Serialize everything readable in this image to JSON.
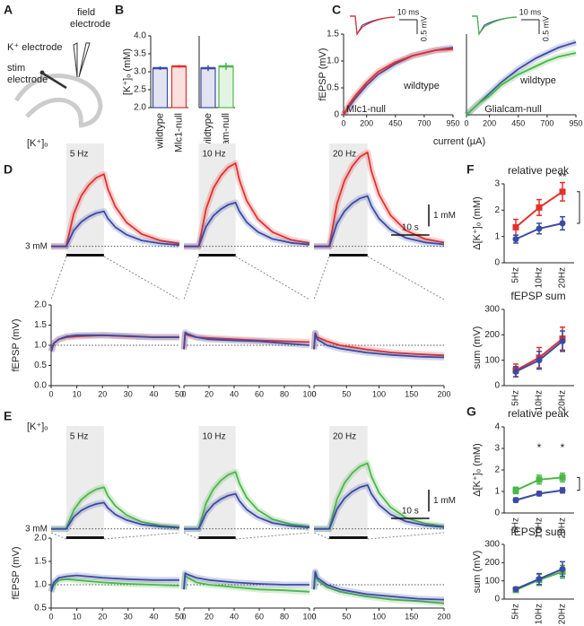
{
  "panel_labels": [
    "A",
    "B",
    "C",
    "D",
    "E",
    "F",
    "G"
  ],
  "schematic": {
    "k_electrode": "K⁺ electrode",
    "field_electrode": [
      "field",
      "electrode"
    ],
    "stim_electrode": [
      "stim",
      "electrode"
    ]
  },
  "chart_data": [
    {
      "type": "bar",
      "ylabel": "[K⁺]ₒ (mM)",
      "categories": [
        "wildtype",
        "Mlc1-null"
      ],
      "values": [
        3.1,
        3.15
      ],
      "errors": [
        0.05,
        0.04
      ],
      "colors": [
        "#3b4ba3",
        "#e3312d"
      ],
      "ylim": [
        2,
        4
      ],
      "yticks": [
        {
          "value": 2,
          "label": "2.0"
        },
        2.5,
        {
          "value": 3,
          "label": "3.0"
        },
        3.5,
        {
          "value": 4,
          "label": "4.0"
        }
      ]
    },
    {
      "type": "bar",
      "categories": [
        "wildtype",
        "Glialcam-null"
      ],
      "values": [
        3.1,
        3.15
      ],
      "errors": [
        0.08,
        0.1
      ],
      "colors": [
        "#3b4ba3",
        "#4cb748"
      ],
      "ylim": [
        2,
        4
      ]
    },
    {
      "type": "line",
      "ylabel": "fEPSP (mV)",
      "xlabel": "current (µA)",
      "inset_scale_x": "10 ms",
      "inset_scale_y": "0.5 mV",
      "x": [
        0,
        50,
        100,
        200,
        300,
        450,
        600,
        700,
        800,
        950
      ],
      "xlim": [
        0,
        950
      ],
      "xticks": [
        0,
        200,
        450,
        700,
        950
      ],
      "ylim": [
        0,
        1.5
      ],
      "yticks": [
        0,
        0.5,
        {
          "value": 1,
          "label": "1.0"
        },
        1.5
      ],
      "series": [
        {
          "name": "wildtype",
          "color": "#3b4ba3",
          "values": [
            0,
            0.15,
            0.3,
            0.55,
            0.75,
            0.95,
            1.1,
            1.15,
            1.2,
            1.25
          ]
        },
        {
          "name": "Mlc1-null",
          "color": "#e3312d",
          "values": [
            0,
            0.2,
            0.35,
            0.6,
            0.8,
            0.98,
            1.1,
            1.15,
            1.2,
            1.22
          ]
        }
      ]
    },
    {
      "type": "line",
      "inset_scale_x": "10 ms",
      "inset_scale_y": "0.5 mV",
      "x": [
        0,
        50,
        100,
        200,
        300,
        450,
        600,
        700,
        800,
        950
      ],
      "xlim": [
        0,
        950
      ],
      "xticks": [
        0,
        200,
        450,
        700,
        950
      ],
      "ylim": [
        0,
        1.5
      ],
      "series": [
        {
          "name": "wildtype",
          "color": "#3b4ba3",
          "values": [
            0,
            0.1,
            0.2,
            0.4,
            0.6,
            0.85,
            1.05,
            1.15,
            1.25,
            1.35
          ]
        },
        {
          "name": "Glialcam-null",
          "color": "#4cb748",
          "values": [
            0,
            0.1,
            0.2,
            0.35,
            0.55,
            0.75,
            0.9,
            1.0,
            1.08,
            1.15
          ]
        }
      ]
    },
    {
      "type": "trace",
      "label": "[K⁺]ₒ",
      "title": "5 Hz",
      "baseline": {
        "value": 3,
        "label": "3 mM"
      },
      "stim": [
        0,
        10
      ],
      "x": [
        -4,
        0,
        2,
        4,
        6,
        8,
        10,
        11,
        13,
        16,
        20,
        25,
        30
      ],
      "xlim": [
        -4,
        30
      ],
      "ylim": [
        2.7,
        7.7
      ],
      "series": [
        {
          "color": "#e3312d",
          "values": [
            3,
            3,
            4.49,
            5.31,
            5.81,
            6.14,
            6.3,
            5.64,
            4.82,
            4.09,
            3.56,
            3.26,
            3.13
          ]
        },
        {
          "color": "#3b4ba3",
          "values": [
            3,
            3,
            3.72,
            4.12,
            4.36,
            4.52,
            4.6,
            4.28,
            3.88,
            3.53,
            3.27,
            3.13,
            3.06
          ]
        }
      ]
    },
    {
      "type": "trace",
      "title": "10 Hz",
      "baseline": 3,
      "stim": [
        0,
        10
      ],
      "x": [
        -4,
        0,
        2,
        4,
        6,
        8,
        10,
        11,
        13,
        16,
        20,
        25,
        30
      ],
      "xlim": [
        -4,
        30
      ],
      "ylim": [
        2.7,
        7.7
      ],
      "series": [
        {
          "color": "#e3312d",
          "values": [
            3,
            3,
            4.71,
            5.66,
            6.23,
            6.61,
            6.8,
            6.04,
            5.09,
            4.25,
            3.65,
            3.3,
            3.15
          ]
        },
        {
          "color": "#3b4ba3",
          "values": [
            3,
            3,
            3.9,
            4.4,
            4.7,
            4.9,
            5.0,
            4.6,
            4.1,
            3.66,
            3.34,
            3.16,
            3.08
          ]
        }
      ]
    },
    {
      "type": "trace",
      "title": "20 Hz",
      "baseline": 3,
      "stim": [
        0,
        10
      ],
      "scale_y": {
        "value": 1,
        "label": "1 mM"
      },
      "scale_x": {
        "value": 10,
        "label": "10 s"
      },
      "x": [
        -4,
        0,
        2,
        4,
        6,
        8,
        10,
        11,
        13,
        16,
        20,
        25,
        30
      ],
      "xlim": [
        -4,
        30
      ],
      "ylim": [
        2.7,
        7.7
      ],
      "series": [
        {
          "color": "#e3312d",
          "values": [
            3,
            3,
            4.94,
            6.01,
            6.66,
            7.09,
            7.3,
            6.44,
            5.37,
            4.42,
            3.73,
            3.34,
            3.17
          ]
        },
        {
          "color": "#3b4ba3",
          "values": [
            3,
            3,
            4.04,
            4.61,
            4.96,
            5.19,
            5.3,
            4.84,
            4.27,
            3.76,
            3.39,
            3.18,
            3.09
          ]
        }
      ]
    },
    {
      "type": "line",
      "ylabel": "fEPSP (mV)",
      "ref_line": 1,
      "x": [
        0,
        1,
        3,
        6,
        10,
        20,
        30,
        40,
        50
      ],
      "xlim": [
        0,
        50
      ],
      "xticks": [
        0,
        10,
        20,
        30,
        40,
        50
      ],
      "ylim": [
        0,
        2
      ],
      "yticks": [
        {
          "value": 0,
          "label": "0.0"
        },
        0.5,
        {
          "value": 1,
          "label": "1.0"
        },
        1.5,
        {
          "value": 2,
          "label": "2.0"
        }
      ],
      "series": [
        {
          "color": "#e3312d",
          "values": [
            0.85,
            1.05,
            1.15,
            1.2,
            1.22,
            1.25,
            1.22,
            1.2,
            1.2
          ]
        },
        {
          "color": "#3b4ba3",
          "values": [
            0.85,
            1.05,
            1.15,
            1.22,
            1.25,
            1.25,
            1.23,
            1.2,
            1.2
          ]
        }
      ]
    },
    {
      "type": "line",
      "ref_line": 1,
      "x": [
        0,
        1,
        3,
        10,
        20,
        40,
        60,
        80,
        100
      ],
      "xlim": [
        0,
        100
      ],
      "xticks": [
        0,
        20,
        40,
        60,
        80,
        100
      ],
      "ylim": [
        0,
        2
      ],
      "series": [
        {
          "color": "#e3312d",
          "values": [
            0.9,
            1.28,
            1.25,
            1.2,
            1.18,
            1.15,
            1.12,
            1.1,
            1.08
          ]
        },
        {
          "color": "#3b4ba3",
          "values": [
            0.9,
            1.32,
            1.28,
            1.2,
            1.15,
            1.12,
            1.1,
            1.05,
            1.0
          ]
        }
      ]
    },
    {
      "type": "line",
      "ref_line": 1,
      "x": [
        0,
        2,
        5,
        20,
        40,
        80,
        120,
        160,
        200
      ],
      "xlim": [
        0,
        200
      ],
      "xticks": [
        0,
        50,
        100,
        150,
        200
      ],
      "ylim": [
        0,
        2
      ],
      "series": [
        {
          "color": "#e3312d",
          "values": [
            0.9,
            1.3,
            1.2,
            1.1,
            1.0,
            0.9,
            0.82,
            0.78,
            0.75
          ]
        },
        {
          "color": "#3b4ba3",
          "values": [
            0.9,
            1.3,
            1.15,
            1.0,
            0.92,
            0.82,
            0.76,
            0.72,
            0.7
          ]
        }
      ]
    },
    {
      "type": "trace",
      "label": "[K⁺]ₒ",
      "title": "5 Hz",
      "baseline": {
        "value": 3,
        "label": "3 mM"
      },
      "stim": [
        0,
        10
      ],
      "x": [
        -4,
        0,
        2,
        4,
        6,
        8,
        10,
        11,
        13,
        16,
        20,
        25,
        30
      ],
      "xlim": [
        -4,
        30
      ],
      "ylim": [
        2.7,
        7.7
      ],
      "series": [
        {
          "color": "#4cb748",
          "values": [
            3,
            3,
            3.86,
            4.33,
            4.62,
            4.81,
            4.9,
            4.52,
            4.05,
            3.63,
            3.32,
            3.15,
            3.08
          ]
        },
        {
          "color": "#3b4ba3",
          "values": [
            3,
            3,
            3.54,
            3.84,
            4.02,
            4.14,
            4.2,
            3.96,
            3.66,
            3.4,
            3.2,
            3.1,
            3.05
          ]
        }
      ]
    },
    {
      "type": "trace",
      "title": "10 Hz",
      "baseline": 3,
      "stim": [
        0,
        10
      ],
      "x": [
        -4,
        0,
        2,
        4,
        6,
        8,
        10,
        11,
        13,
        16,
        20,
        25,
        30
      ],
      "xlim": [
        -4,
        30
      ],
      "ylim": [
        2.7,
        7.7
      ],
      "series": [
        {
          "color": "#4cb748",
          "values": [
            3,
            3,
            4.17,
            4.82,
            5.21,
            5.47,
            5.6,
            5.08,
            4.43,
            3.86,
            3.44,
            3.21,
            3.1
          ]
        },
        {
          "color": "#3b4ba3",
          "values": [
            3,
            3,
            3.72,
            4.12,
            4.36,
            4.52,
            4.6,
            4.28,
            3.88,
            3.53,
            3.27,
            3.13,
            3.06
          ]
        }
      ]
    },
    {
      "type": "trace",
      "title": "20 Hz",
      "baseline": 3,
      "stim": [
        0,
        10
      ],
      "scale_y": {
        "value": 1,
        "label": "1 mM"
      },
      "scale_x": {
        "value": 10,
        "label": "10 s"
      },
      "x": [
        -4,
        0,
        2,
        4,
        6,
        8,
        10,
        11,
        13,
        16,
        20,
        25,
        30
      ],
      "xlim": [
        -4,
        30
      ],
      "ylim": [
        2.7,
        7.7
      ],
      "series": [
        {
          "color": "#4cb748",
          "values": [
            3,
            3,
            4.35,
            5.1,
            5.55,
            5.85,
            6.0,
            5.4,
            4.65,
            3.99,
            3.51,
            3.24,
            3.12
          ]
        },
        {
          "color": "#3b4ba3",
          "values": [
            3,
            3,
            3.9,
            4.4,
            4.7,
            4.9,
            5.0,
            4.6,
            4.1,
            3.66,
            3.34,
            3.16,
            3.08
          ]
        }
      ]
    },
    {
      "type": "line",
      "ylabel": "fEPSP (mV)",
      "ref_line": 1,
      "x": [
        0,
        1,
        3,
        6,
        10,
        20,
        30,
        40,
        50
      ],
      "xlim": [
        0,
        50
      ],
      "xticks": [
        0,
        10,
        20,
        30,
        40,
        50
      ],
      "ylim": [
        0.5,
        2
      ],
      "yticks": [
        {
          "value": 2,
          "label": "2.0"
        },
        1.5,
        {
          "value": 1,
          "label": "1.0"
        },
        0.5
      ],
      "series": [
        {
          "color": "#4cb748",
          "values": [
            0.85,
            1.0,
            1.1,
            1.12,
            1.1,
            1.05,
            1.02,
            1.0,
            0.98
          ]
        },
        {
          "color": "#3b4ba3",
          "values": [
            0.85,
            1.05,
            1.15,
            1.18,
            1.2,
            1.15,
            1.12,
            1.1,
            1.1
          ]
        }
      ]
    },
    {
      "type": "line",
      "ref_line": 1,
      "x": [
        0,
        1,
        3,
        10,
        20,
        40,
        60,
        80,
        100
      ],
      "xlim": [
        0,
        100
      ],
      "xticks": [
        0,
        20,
        40,
        60,
        80,
        100
      ],
      "ylim": [
        0.5,
        2
      ],
      "series": [
        {
          "color": "#4cb748",
          "values": [
            0.9,
            1.2,
            1.15,
            1.05,
            1.0,
            0.95,
            0.9,
            0.88,
            0.85
          ]
        },
        {
          "color": "#3b4ba3",
          "values": [
            0.9,
            1.25,
            1.22,
            1.15,
            1.1,
            1.05,
            1.02,
            1.0,
            1.0
          ]
        }
      ]
    },
    {
      "type": "line",
      "ref_line": 1,
      "x": [
        0,
        2,
        5,
        20,
        40,
        80,
        120,
        160,
        200
      ],
      "xlim": [
        0,
        200
      ],
      "xticks": [
        0,
        50,
        100,
        150,
        200
      ],
      "ylim": [
        0.5,
        2
      ],
      "series": [
        {
          "color": "#4cb748",
          "values": [
            0.9,
            1.25,
            1.1,
            0.95,
            0.85,
            0.75,
            0.68,
            0.65,
            0.6
          ]
        },
        {
          "color": "#3b4ba3",
          "values": [
            0.9,
            1.28,
            1.15,
            1.0,
            0.9,
            0.8,
            0.75,
            0.7,
            0.68
          ]
        }
      ]
    },
    {
      "type": "pointplot",
      "title": "relative peak",
      "ylabel": "Δ[K⁺]ₒ (mM)",
      "categories": [
        "5Hz",
        "10Hz",
        "20Hz"
      ],
      "ylim": [
        0,
        3
      ],
      "yticks": [
        0,
        1,
        2,
        3
      ],
      "annotations": [
        "**",
        "*"
      ],
      "series": [
        {
          "color": "#e3312d",
          "values": [
            1.35,
            2.1,
            2.7
          ],
          "errors": [
            0.3,
            0.3,
            0.35
          ]
        },
        {
          "color": "#3b4ba3",
          "values": [
            0.9,
            1.3,
            1.5
          ],
          "errors": [
            0.15,
            0.2,
            0.25
          ]
        }
      ]
    },
    {
      "type": "pointplot",
      "title": "fEPSP sum",
      "ylabel": "sum (mV)",
      "categories": [
        "5Hz",
        "10Hz",
        "20Hz"
      ],
      "ylim": [
        0,
        300
      ],
      "yticks": [
        0,
        100,
        200,
        300
      ],
      "series": [
        {
          "color": "#e3312d",
          "values": [
            60,
            110,
            185
          ],
          "errors": [
            25,
            40,
            45
          ]
        },
        {
          "color": "#3b4ba3",
          "values": [
            55,
            100,
            175
          ],
          "errors": [
            20,
            35,
            40
          ]
        }
      ]
    },
    {
      "type": "pointplot",
      "title": "relative peak",
      "ylabel": "Δ[K⁺]ₒ (mM)",
      "categories": [
        "5Hz",
        "10Hz",
        "20Hz"
      ],
      "ylim": [
        0,
        4
      ],
      "yticks": [
        0,
        1,
        2,
        3,
        4
      ],
      "annotations": [
        "*",
        "*",
        "*"
      ],
      "series": [
        {
          "color": "#4cb748",
          "values": [
            1.05,
            1.55,
            1.65
          ],
          "errors": [
            0.15,
            0.2,
            0.2
          ]
        },
        {
          "color": "#3b4ba3",
          "values": [
            0.6,
            0.9,
            1.05
          ],
          "errors": [
            0.1,
            0.1,
            0.12
          ]
        }
      ]
    },
    {
      "type": "pointplot",
      "title": "fEPSP sum",
      "ylabel": "sum (mV)",
      "categories": [
        "5Hz",
        "10Hz",
        "20Hz"
      ],
      "ylim": [
        0,
        300
      ],
      "yticks": [
        0,
        100,
        200,
        300
      ],
      "series": [
        {
          "color": "#4cb748",
          "values": [
            50,
            105,
            150
          ],
          "errors": [
            10,
            30,
            35
          ]
        },
        {
          "color": "#3b4ba3",
          "values": [
            55,
            110,
            165
          ],
          "errors": [
            10,
            30,
            40
          ]
        }
      ]
    }
  ]
}
